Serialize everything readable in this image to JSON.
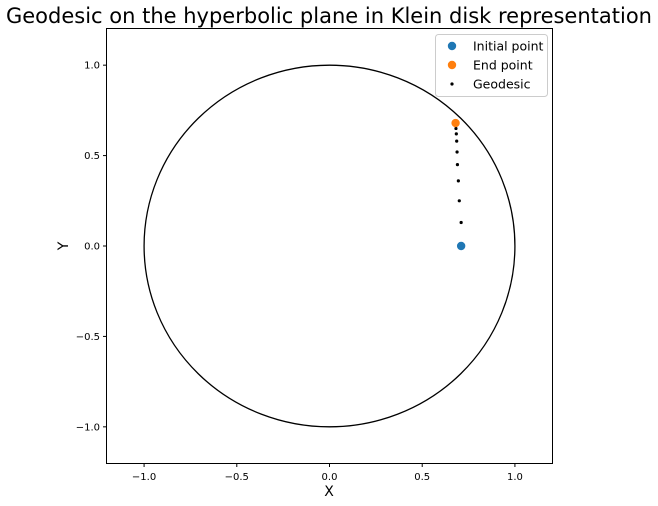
{
  "chart_data": {
    "type": "scatter",
    "title": "Geodesic on the hyperbolic plane in Klein disk representation",
    "xlabel": "X",
    "ylabel": "Y",
    "xlim": [
      -1.2,
      1.2
    ],
    "ylim": [
      -1.2,
      1.2
    ],
    "xticks": [
      -1.0,
      -0.5,
      0.0,
      0.5,
      1.0
    ],
    "yticks": [
      -1.0,
      -0.5,
      0.0,
      0.5,
      1.0
    ],
    "xtick_labels": [
      "−1.0",
      "−0.5",
      "0.0",
      "0.5",
      "1.0"
    ],
    "ytick_labels": [
      "−1.0",
      "−0.5",
      "0.0",
      "0.5",
      "1.0"
    ],
    "grid": false,
    "legend_position": "top-right",
    "boundary_circle": {
      "center": [
        0,
        0
      ],
      "radius": 1.0,
      "color": "#000000"
    },
    "series": [
      {
        "name": "Initial point",
        "color": "#1f77b4",
        "marker": "circle-large",
        "points": [
          [
            0.71,
            0.0
          ]
        ]
      },
      {
        "name": "End point",
        "color": "#ff7f0e",
        "marker": "circle-large",
        "points": [
          [
            0.68,
            0.68
          ]
        ]
      },
      {
        "name": "Geodesic",
        "color": "#000000",
        "marker": "dot-small",
        "points": [
          [
            0.71,
            0.13
          ],
          [
            0.7,
            0.25
          ],
          [
            0.695,
            0.36
          ],
          [
            0.69,
            0.45
          ],
          [
            0.688,
            0.52
          ],
          [
            0.686,
            0.58
          ],
          [
            0.684,
            0.62
          ],
          [
            0.682,
            0.65
          ],
          [
            0.68,
            0.67
          ]
        ]
      }
    ]
  }
}
